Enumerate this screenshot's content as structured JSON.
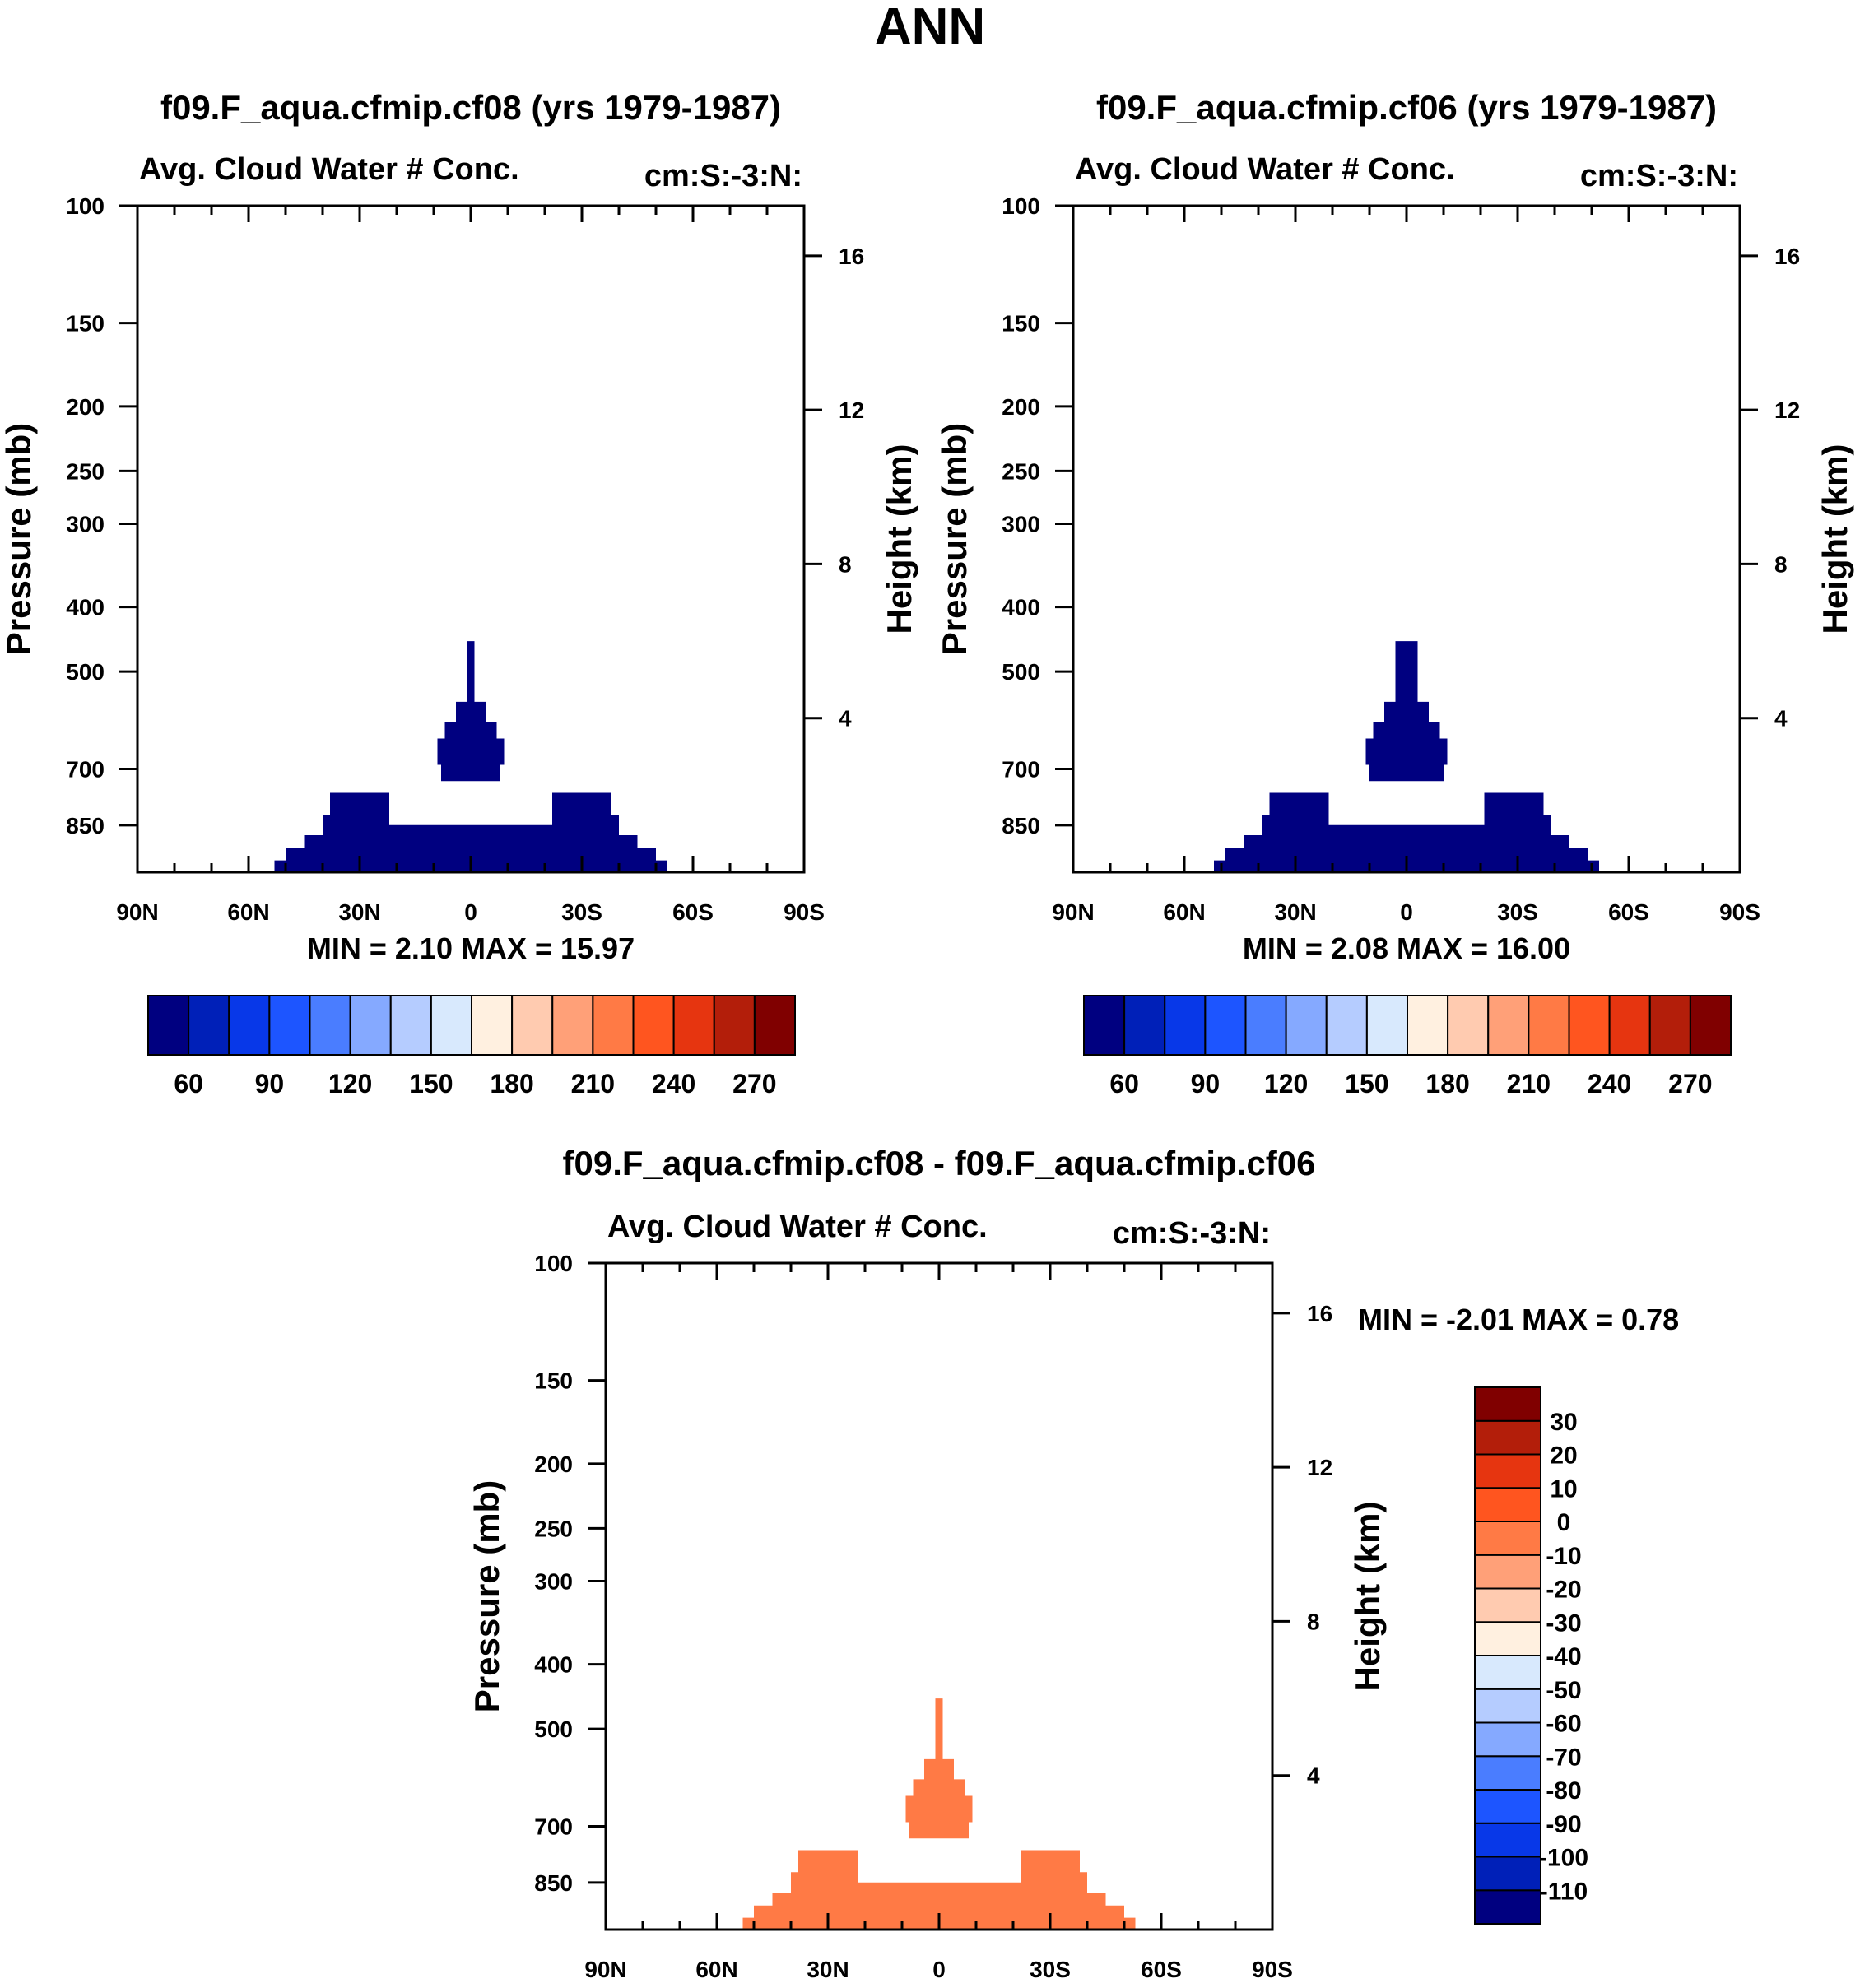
{
  "figure_title": "ANN",
  "chart_data": [
    {
      "id": "p1",
      "type": "contour",
      "title": "f09.F_aqua.cfmip.cf08 (yrs 1979-1987)",
      "left_label": "Avg. Cloud Water # Conc.",
      "right_label": "cm:S:-3:N:",
      "ylabel": "Pressure (mb)",
      "ylabel_right": "Height (km)",
      "minmax": "MIN =   2.10  MAX =  15.97",
      "ylim_mb": [
        100,
        1000
      ],
      "xlim_deg": [
        90,
        -90
      ],
      "x_ticks": [
        {
          "v": 90,
          "label": "90N"
        },
        {
          "v": 60,
          "label": "60N"
        },
        {
          "v": 30,
          "label": "30N"
        },
        {
          "v": 0,
          "label": "0"
        },
        {
          "v": -30,
          "label": "30S"
        },
        {
          "v": -60,
          "label": "60S"
        },
        {
          "v": -90,
          "label": "90S"
        }
      ],
      "y_ticks": [
        {
          "v": 100,
          "label": "100"
        },
        {
          "v": 150,
          "label": "150"
        },
        {
          "v": 200,
          "label": "200"
        },
        {
          "v": 250,
          "label": "250"
        },
        {
          "v": 300,
          "label": "300"
        },
        {
          "v": 400,
          "label": "400"
        },
        {
          "v": 500,
          "label": "500"
        },
        {
          "v": 700,
          "label": "700"
        },
        {
          "v": 850,
          "label": "850"
        }
      ],
      "height_ticks": [
        {
          "v": 16,
          "label": "16"
        },
        {
          "v": 12,
          "label": "12"
        },
        {
          "v": 8,
          "label": "8"
        },
        {
          "v": 4,
          "label": "4"
        }
      ],
      "fill_color": "#000080",
      "field_polygon": [
        [
          -1,
          450
        ],
        [
          1,
          450
        ],
        [
          1,
          555
        ],
        [
          4,
          555
        ],
        [
          4,
          595
        ],
        [
          7,
          595
        ],
        [
          7,
          630
        ],
        [
          9,
          630
        ],
        [
          9,
          690
        ],
        [
          8,
          690
        ],
        [
          8,
          730
        ],
        [
          -8,
          730
        ],
        [
          -8,
          690
        ],
        [
          -9,
          690
        ],
        [
          -9,
          630
        ],
        [
          -7,
          630
        ],
        [
          -7,
          595
        ],
        [
          -4,
          595
        ],
        [
          -4,
          555
        ],
        [
          -1,
          555
        ]
      ],
      "base_polygon": [
        [
          -55,
          1000
        ],
        [
          -53,
          1000
        ],
        [
          -53,
          960
        ],
        [
          -50,
          960
        ],
        [
          -50,
          920
        ],
        [
          -45,
          920
        ],
        [
          -45,
          880
        ],
        [
          -40,
          880
        ],
        [
          -40,
          820
        ],
        [
          -38,
          820
        ],
        [
          -38,
          760
        ],
        [
          -22,
          760
        ],
        [
          -22,
          850
        ],
        [
          22,
          850
        ],
        [
          22,
          760
        ],
        [
          38,
          760
        ],
        [
          38,
          820
        ],
        [
          40,
          820
        ],
        [
          40,
          880
        ],
        [
          45,
          880
        ],
        [
          45,
          920
        ],
        [
          50,
          920
        ],
        [
          50,
          960
        ],
        [
          53,
          960
        ],
        [
          53,
          1000
        ],
        [
          55,
          1000
        ]
      ],
      "colorbar": {
        "orientation": "horizontal",
        "colors": [
          "#000080",
          "#0020b8",
          "#0838e8",
          "#1d55ff",
          "#4a7dff",
          "#85a9ff",
          "#b5ccff",
          "#d8e9fd",
          "#fff0e0",
          "#ffcbb0",
          "#ffa078",
          "#ff7a45",
          "#ff551f",
          "#e63510",
          "#b31e0a",
          "#800000"
        ],
        "labels": [
          "60",
          "90",
          "120",
          "150",
          "180",
          "210",
          "240",
          "270"
        ]
      }
    },
    {
      "id": "p2",
      "type": "contour",
      "title": "f09.F_aqua.cfmip.cf06 (yrs 1979-1987)",
      "left_label": "Avg. Cloud Water # Conc.",
      "right_label": "cm:S:-3:N:",
      "ylabel": "Pressure (mb)",
      "ylabel_right": "Height (km)",
      "minmax": "MIN =   2.08  MAX =  16.00",
      "ylim_mb": [
        100,
        1000
      ],
      "xlim_deg": [
        90,
        -90
      ],
      "x_ticks": [
        {
          "v": 90,
          "label": "90N"
        },
        {
          "v": 60,
          "label": "60N"
        },
        {
          "v": 30,
          "label": "30N"
        },
        {
          "v": 0,
          "label": "0"
        },
        {
          "v": -30,
          "label": "30S"
        },
        {
          "v": -60,
          "label": "60S"
        },
        {
          "v": -90,
          "label": "90S"
        }
      ],
      "y_ticks": [
        {
          "v": 100,
          "label": "100"
        },
        {
          "v": 150,
          "label": "150"
        },
        {
          "v": 200,
          "label": "200"
        },
        {
          "v": 250,
          "label": "250"
        },
        {
          "v": 300,
          "label": "300"
        },
        {
          "v": 400,
          "label": "400"
        },
        {
          "v": 500,
          "label": "500"
        },
        {
          "v": 700,
          "label": "700"
        },
        {
          "v": 850,
          "label": "850"
        }
      ],
      "height_ticks": [
        {
          "v": 16,
          "label": "16"
        },
        {
          "v": 12,
          "label": "12"
        },
        {
          "v": 8,
          "label": "8"
        },
        {
          "v": 4,
          "label": "4"
        }
      ],
      "fill_color": "#000080",
      "field_polygon": [
        [
          -3,
          450
        ],
        [
          3,
          450
        ],
        [
          3,
          555
        ],
        [
          6,
          555
        ],
        [
          6,
          595
        ],
        [
          9,
          595
        ],
        [
          9,
          630
        ],
        [
          11,
          630
        ],
        [
          11,
          690
        ],
        [
          10,
          690
        ],
        [
          10,
          730
        ],
        [
          -10,
          730
        ],
        [
          -10,
          690
        ],
        [
          -11,
          690
        ],
        [
          -11,
          630
        ],
        [
          -9,
          630
        ],
        [
          -9,
          595
        ],
        [
          -6,
          595
        ],
        [
          -6,
          555
        ],
        [
          -3,
          555
        ]
      ],
      "base_polygon": [
        [
          -55,
          1000
        ],
        [
          -52,
          1000
        ],
        [
          -52,
          960
        ],
        [
          -49,
          960
        ],
        [
          -49,
          920
        ],
        [
          -44,
          920
        ],
        [
          -44,
          880
        ],
        [
          -39,
          880
        ],
        [
          -39,
          820
        ],
        [
          -37,
          820
        ],
        [
          -37,
          760
        ],
        [
          -21,
          760
        ],
        [
          -21,
          850
        ],
        [
          21,
          850
        ],
        [
          21,
          760
        ],
        [
          37,
          760
        ],
        [
          37,
          820
        ],
        [
          39,
          820
        ],
        [
          39,
          880
        ],
        [
          44,
          880
        ],
        [
          44,
          920
        ],
        [
          49,
          920
        ],
        [
          49,
          960
        ],
        [
          52,
          960
        ],
        [
          52,
          1000
        ],
        [
          55,
          1000
        ]
      ],
      "colorbar": {
        "orientation": "horizontal",
        "colors": [
          "#000080",
          "#0020b8",
          "#0838e8",
          "#1d55ff",
          "#4a7dff",
          "#85a9ff",
          "#b5ccff",
          "#d8e9fd",
          "#fff0e0",
          "#ffcbb0",
          "#ffa078",
          "#ff7a45",
          "#ff551f",
          "#e63510",
          "#b31e0a",
          "#800000"
        ],
        "labels": [
          "60",
          "90",
          "120",
          "150",
          "180",
          "210",
          "240",
          "270"
        ]
      }
    },
    {
      "id": "p3",
      "type": "contour",
      "title": "f09.F_aqua.cfmip.cf08 - f09.F_aqua.cfmip.cf06",
      "left_label": "Avg. Cloud Water # Conc.",
      "right_label": "cm:S:-3:N:",
      "ylabel": "Pressure (mb)",
      "ylabel_right": "Height (km)",
      "minmax": "MIN =  -2.01  MAX =   0.78",
      "ylim_mb": [
        100,
        1000
      ],
      "xlim_deg": [
        90,
        -90
      ],
      "x_ticks": [
        {
          "v": 90,
          "label": "90N"
        },
        {
          "v": 60,
          "label": "60N"
        },
        {
          "v": 30,
          "label": "30N"
        },
        {
          "v": 0,
          "label": "0"
        },
        {
          "v": -30,
          "label": "30S"
        },
        {
          "v": -60,
          "label": "60S"
        },
        {
          "v": -90,
          "label": "90S"
        }
      ],
      "y_ticks": [
        {
          "v": 100,
          "label": "100"
        },
        {
          "v": 150,
          "label": "150"
        },
        {
          "v": 200,
          "label": "200"
        },
        {
          "v": 250,
          "label": "250"
        },
        {
          "v": 300,
          "label": "300"
        },
        {
          "v": 400,
          "label": "400"
        },
        {
          "v": 500,
          "label": "500"
        },
        {
          "v": 700,
          "label": "700"
        },
        {
          "v": 850,
          "label": "850"
        }
      ],
      "height_ticks": [
        {
          "v": 16,
          "label": "16"
        },
        {
          "v": 12,
          "label": "12"
        },
        {
          "v": 8,
          "label": "8"
        },
        {
          "v": 4,
          "label": "4"
        }
      ],
      "fill_color": "#ff7a45",
      "field_polygon": [
        [
          -1,
          450
        ],
        [
          1,
          450
        ],
        [
          1,
          555
        ],
        [
          4,
          555
        ],
        [
          4,
          595
        ],
        [
          7,
          595
        ],
        [
          7,
          630
        ],
        [
          9,
          630
        ],
        [
          9,
          690
        ],
        [
          8,
          690
        ],
        [
          8,
          730
        ],
        [
          -8,
          730
        ],
        [
          -8,
          690
        ],
        [
          -9,
          690
        ],
        [
          -9,
          630
        ],
        [
          -7,
          630
        ],
        [
          -7,
          595
        ],
        [
          -4,
          595
        ],
        [
          -4,
          555
        ],
        [
          -1,
          555
        ]
      ],
      "base_polygon": [
        [
          -55,
          1000
        ],
        [
          -53,
          1000
        ],
        [
          -53,
          960
        ],
        [
          -50,
          960
        ],
        [
          -50,
          920
        ],
        [
          -45,
          920
        ],
        [
          -45,
          880
        ],
        [
          -40,
          880
        ],
        [
          -40,
          820
        ],
        [
          -38,
          820
        ],
        [
          -38,
          760
        ],
        [
          -22,
          760
        ],
        [
          -22,
          850
        ],
        [
          22,
          850
        ],
        [
          22,
          760
        ],
        [
          38,
          760
        ],
        [
          38,
          820
        ],
        [
          40,
          820
        ],
        [
          40,
          880
        ],
        [
          45,
          880
        ],
        [
          45,
          920
        ],
        [
          50,
          920
        ],
        [
          50,
          960
        ],
        [
          53,
          960
        ],
        [
          53,
          1000
        ],
        [
          55,
          1000
        ]
      ],
      "colorbar": {
        "orientation": "vertical",
        "colors": [
          "#000080",
          "#0020b8",
          "#0838e8",
          "#1d55ff",
          "#4a7dff",
          "#85a9ff",
          "#b5ccff",
          "#d8e9fd",
          "#fff0e0",
          "#ffcbb0",
          "#ffa078",
          "#ff7a45",
          "#ff551f",
          "#e63510",
          "#b31e0a",
          "#800000"
        ],
        "labels": [
          "-110",
          "-100",
          "-90",
          "-80",
          "-70",
          "-60",
          "-50",
          "-40",
          "-30",
          "-20",
          "-10",
          "0",
          "10",
          "20",
          "30"
        ]
      }
    }
  ]
}
